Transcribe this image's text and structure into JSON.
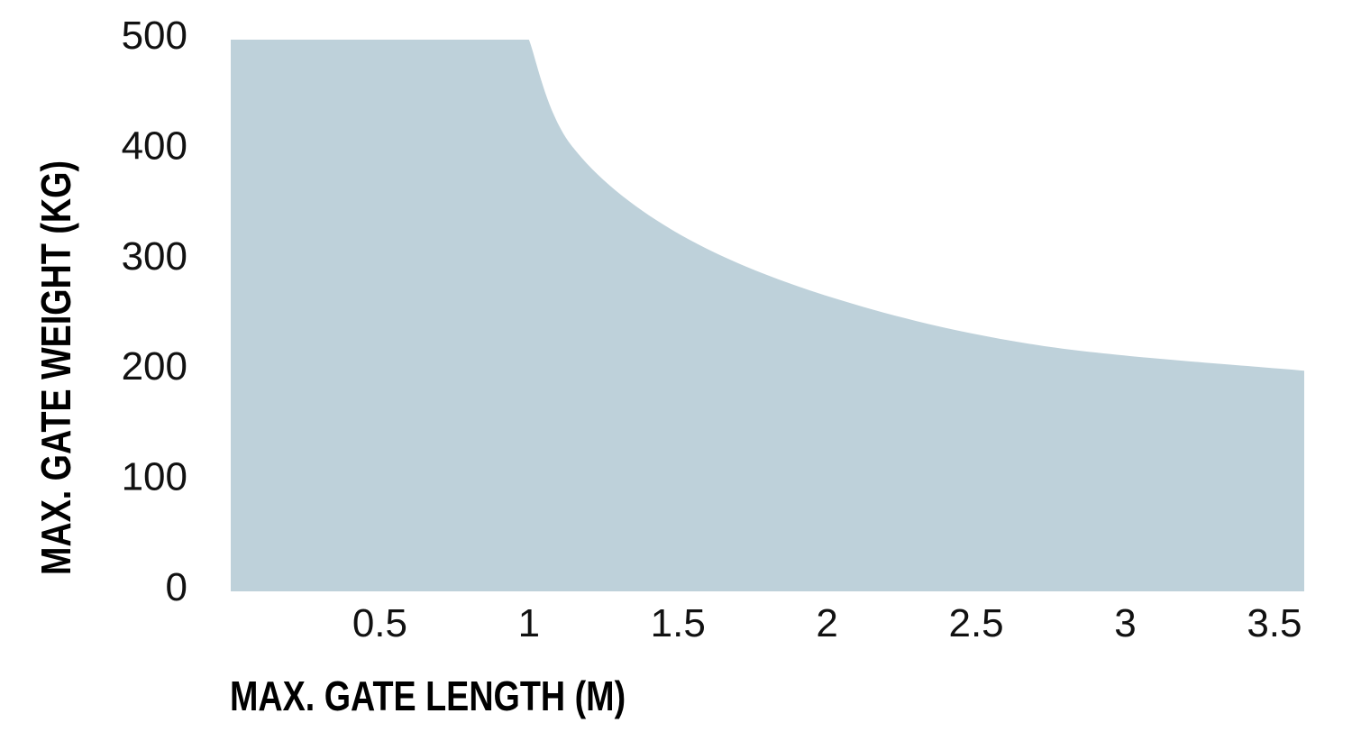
{
  "chart_data": {
    "type": "area",
    "title": "",
    "xlabel": "MAX. GATE LENGTH (M)",
    "ylabel": "MAX. GATE WEIGHT (KG)",
    "xlim": [
      0,
      3.6
    ],
    "ylim": [
      0,
      500
    ],
    "x_ticks": [
      "0.5",
      "1",
      "1.5",
      "2",
      "2.5",
      "3",
      "3.5"
    ],
    "y_ticks": [
      "0",
      "100",
      "200",
      "300",
      "400",
      "500"
    ],
    "grid": false,
    "fill_color": "#bed1da",
    "series": [
      {
        "x": [
          0,
          1.0,
          1.14,
          1.49,
          2.02,
          2.71,
          3.6
        ],
        "y": [
          500,
          500,
          405,
          326,
          266,
          223,
          200
        ]
      }
    ]
  }
}
